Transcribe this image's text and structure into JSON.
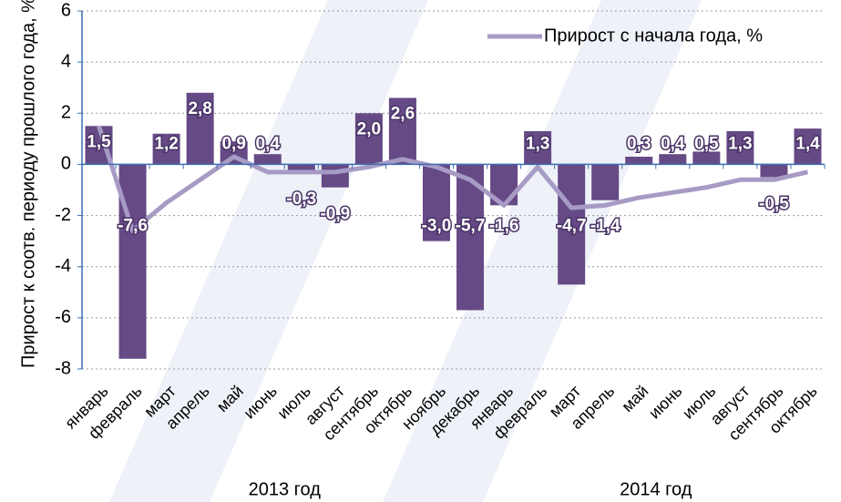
{
  "chart_data": {
    "type": "bar_line",
    "y_label": "Прирост к соотв. периоду прошлого года, %",
    "categories": [
      "январь",
      "февраль",
      "март",
      "апрель",
      "май",
      "июнь",
      "июль",
      "август",
      "сентябрь",
      "октябрь",
      "ноябрь",
      "декабрь",
      "январь",
      "февраль",
      "март",
      "апрель",
      "май",
      "июнь",
      "июль",
      "август",
      "сентябрь",
      "октябрь"
    ],
    "x_groups": [
      {
        "label": "2013 год",
        "span": 12
      },
      {
        "label": "2014 год",
        "span": 10
      }
    ],
    "series": [
      {
        "name": null,
        "type": "bar",
        "color": "#654a86",
        "values": [
          1.5,
          -7.6,
          1.2,
          2.8,
          0.9,
          0.4,
          -0.3,
          -0.9,
          2.0,
          2.6,
          -3.0,
          -5.7,
          -1.6,
          1.3,
          -4.7,
          -1.4,
          0.3,
          0.4,
          0.5,
          1.3,
          -0.5,
          1.4
        ],
        "value_labels": [
          "1,5",
          "-7,6",
          "1,2",
          "2,8",
          "0,9",
          "0,4",
          "-0,3",
          "-0,9",
          "2,0",
          "2,6",
          "-3,0",
          "-5,7",
          "-1,6",
          "1,3",
          "-4,7",
          "-1,4",
          "0,3",
          "0,4",
          "0,5",
          "1,3",
          "-0,5",
          "1,4"
        ]
      },
      {
        "name": "Прирост с начала года, %",
        "type": "line",
        "color": "#a79bc5",
        "values": [
          1.5,
          -2.6,
          -1.5,
          -0.6,
          0.3,
          -0.3,
          -0.3,
          -0.3,
          -0.1,
          0.2,
          -0.1,
          -0.6,
          -1.6,
          -0.1,
          -1.7,
          -1.6,
          -1.3,
          -1.1,
          -0.9,
          -0.6,
          -0.6,
          -0.3
        ]
      }
    ],
    "ylim": [
      -8,
      6
    ],
    "yticks": [
      -8,
      -6,
      -4,
      -2,
      0,
      2,
      4,
      6
    ],
    "grid": true,
    "legend": "top-right"
  }
}
